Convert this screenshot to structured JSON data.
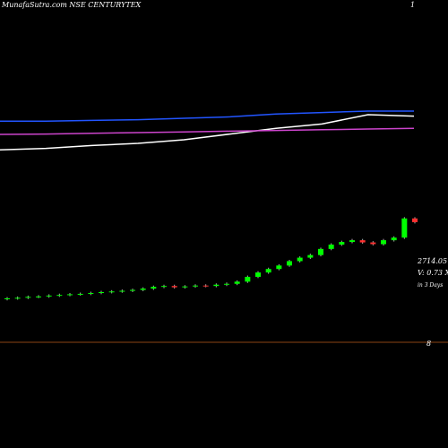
{
  "chart_data": {
    "type": "candlestick",
    "title": "MunafaSutra.com NSE CENTURYTEX",
    "corner_label": "1",
    "bottom_label": "8",
    "annotations": [
      "2714.05",
      "V: 0.73 X",
      "in 3 Days"
    ],
    "open": [
      950,
      966,
      980,
      1000,
      1010,
      1030,
      1045,
      1060,
      1070,
      1090,
      1110,
      1125,
      1140,
      1160,
      1190,
      1230,
      1250,
      1220,
      1240,
      1260,
      1250,
      1280,
      1300,
      1350,
      1460,
      1560,
      1640,
      1720,
      1820,
      1900,
      1960,
      2100,
      2200,
      2260,
      2300,
      2250,
      2210,
      2300,
      2360,
      2800
    ],
    "high": [
      996,
      1010,
      1030,
      1040,
      1060,
      1075,
      1090,
      1100,
      1120,
      1140,
      1155,
      1170,
      1190,
      1220,
      1260,
      1280,
      1280,
      1270,
      1290,
      1290,
      1310,
      1330,
      1380,
      1490,
      1590,
      1670,
      1750,
      1850,
      1930,
      1990,
      2130,
      2230,
      2290,
      2330,
      2330,
      2280,
      2330,
      2390,
      2830,
      2830
    ],
    "low": [
      920,
      936,
      950,
      970,
      980,
      1000,
      1015,
      1030,
      1040,
      1060,
      1080,
      1095,
      1110,
      1130,
      1160,
      1200,
      1190,
      1190,
      1210,
      1220,
      1220,
      1250,
      1270,
      1320,
      1430,
      1530,
      1610,
      1690,
      1790,
      1870,
      1930,
      2070,
      2170,
      2230,
      2220,
      2180,
      2180,
      2270,
      2330,
      2684
    ],
    "close": [
      966,
      980,
      1000,
      1010,
      1030,
      1045,
      1060,
      1070,
      1090,
      1110,
      1125,
      1140,
      1160,
      1190,
      1230,
      1250,
      1220,
      1240,
      1260,
      1250,
      1280,
      1300,
      1350,
      1460,
      1560,
      1640,
      1720,
      1820,
      1900,
      1960,
      2100,
      2200,
      2260,
      2300,
      2250,
      2210,
      2300,
      2360,
      2800,
      2714.05
    ],
    "up_color": "#00ff00",
    "down_color": "#ff3030",
    "ylim": [
      0,
      3700
    ],
    "indicator_ylim": [
      0,
      100
    ],
    "indicators": [
      {
        "color": "#ffffff",
        "values": [
          16,
          18,
          22,
          25,
          30,
          38,
          46,
          52,
          65,
          63
        ]
      },
      {
        "color": "#2255ff",
        "values": [
          56,
          56,
          57,
          58,
          60,
          62,
          66,
          68,
          70,
          70
        ]
      },
      {
        "color": "#cc44cc",
        "values": [
          37.5,
          38,
          39,
          40,
          41,
          42,
          43,
          44,
          45,
          46
        ]
      }
    ]
  }
}
